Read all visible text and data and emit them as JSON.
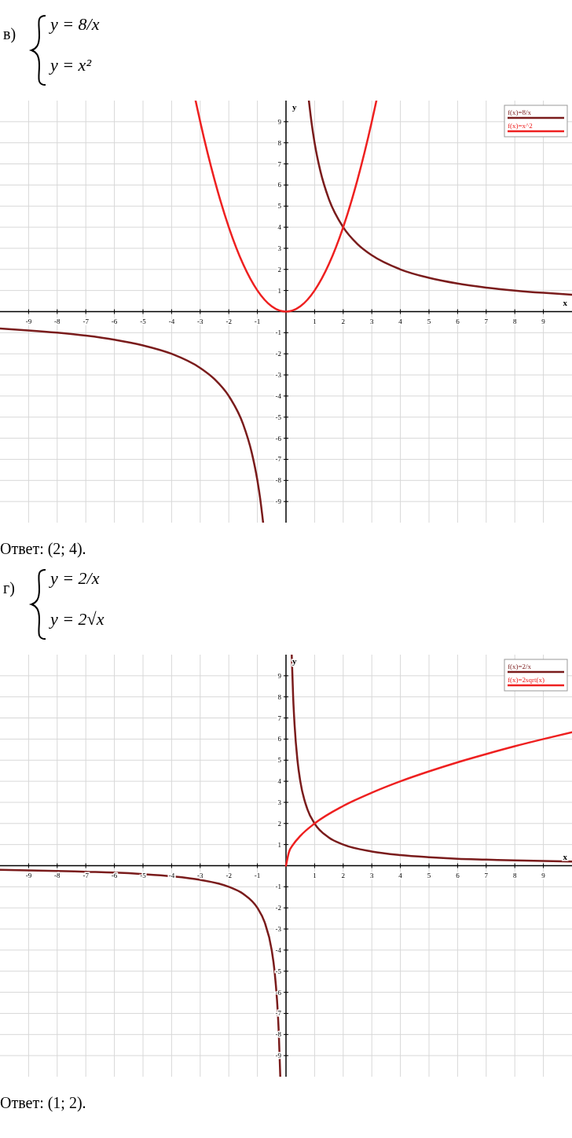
{
  "chart_data": [
    {
      "type": "line",
      "title": "в)",
      "xlabel": "x",
      "ylabel": "y",
      "xlim": [
        -10,
        10
      ],
      "ylim": [
        -10,
        10
      ],
      "xticks": [
        -9,
        -8,
        -7,
        -6,
        -5,
        -4,
        -3,
        -2,
        -1,
        1,
        2,
        3,
        4,
        5,
        6,
        7,
        8,
        9
      ],
      "yticks": [
        -9,
        -8,
        -7,
        -6,
        -5,
        -4,
        -3,
        -2,
        -1,
        1,
        2,
        3,
        4,
        5,
        6,
        7,
        8,
        9
      ],
      "grid": true,
      "legend": "top right",
      "marker": "none",
      "line_style": "solid",
      "annotations": [
        "y = 8/x",
        "y = x²",
        "Ответ: (2; 4)."
      ],
      "series": [
        {
          "name": "f(x)=8/x",
          "color": "#7a1c1c",
          "x": [
            -10,
            -9,
            -8,
            -7,
            -6,
            -5,
            -4,
            -3,
            -2.5,
            -2,
            -1.5,
            -1.2,
            -1,
            -0.9,
            -0.8,
            0,
            0.8,
            0.9,
            1,
            1.2,
            1.5,
            2,
            2.5,
            3,
            4,
            5,
            6,
            7,
            8,
            9,
            10
          ],
          "values": [
            -0.8,
            -0.89,
            -1,
            -1.14,
            -1.33,
            -1.6,
            -2,
            -2.67,
            -3.2,
            -4,
            -5.33,
            -6.67,
            -8,
            -8.89,
            -10,
            null,
            10,
            8.89,
            8,
            6.67,
            5.33,
            4,
            3.2,
            2.67,
            2,
            1.6,
            1.33,
            1.14,
            1,
            0.89,
            0.8
          ]
        },
        {
          "name": "f(x)=x^2",
          "color": "#ee2020",
          "x": [
            -3.16,
            -3,
            -2.5,
            -2,
            -1.5,
            -1,
            -0.5,
            0,
            0.5,
            1,
            1.5,
            2,
            2.5,
            3,
            3.16
          ],
          "values": [
            9.99,
            9,
            6.25,
            4,
            2.25,
            1,
            0.25,
            0,
            0.25,
            1,
            2.25,
            4,
            6.25,
            9,
            9.99
          ]
        }
      ]
    },
    {
      "type": "line",
      "title": "г)",
      "xlabel": "x",
      "ylabel": "y",
      "xlim": [
        -10,
        10
      ],
      "ylim": [
        -10,
        10
      ],
      "xticks": [
        -9,
        -8,
        -7,
        -6,
        -5,
        -4,
        -3,
        -2,
        -1,
        1,
        2,
        3,
        4,
        5,
        6,
        7,
        8,
        9
      ],
      "yticks": [
        -9,
        -8,
        -7,
        -6,
        -5,
        -4,
        -3,
        -2,
        -1,
        1,
        2,
        3,
        4,
        5,
        6,
        7,
        8,
        9
      ],
      "grid": true,
      "legend": "top right",
      "marker": "none",
      "line_style": "solid",
      "annotations": [
        "y = 2/x",
        "y = 2√x",
        "Ответ: (1; 2)."
      ],
      "series": [
        {
          "name": "f(x)=2/x",
          "color": "#7a1c1c",
          "x": [
            -10,
            -9,
            -8,
            -7,
            -6,
            -5,
            -4,
            -3,
            -2,
            -1.5,
            -1,
            -0.75,
            -0.5,
            -0.4,
            -0.3,
            -0.25,
            -0.2,
            0,
            0.2,
            0.25,
            0.3,
            0.4,
            0.5,
            0.75,
            1,
            1.5,
            2,
            3,
            4,
            5,
            6,
            7,
            8,
            9,
            10
          ],
          "values": [
            -0.2,
            -0.22,
            -0.25,
            -0.29,
            -0.33,
            -0.4,
            -0.5,
            -0.67,
            -1,
            -1.33,
            -2,
            -2.67,
            -4,
            -5,
            -6.67,
            -8,
            -10,
            null,
            10,
            8,
            6.67,
            5,
            4,
            2.67,
            2,
            1.33,
            1,
            0.67,
            0.5,
            0.4,
            0.33,
            0.29,
            0.25,
            0.22,
            0.2
          ]
        },
        {
          "name": "f(x)=2sqrt(x)",
          "color": "#ee2020",
          "x": [
            0,
            0.1,
            0.25,
            0.5,
            1,
            2,
            3,
            4,
            5,
            6,
            7,
            8,
            9,
            10
          ],
          "values": [
            0,
            0.63,
            1,
            1.41,
            2,
            2.83,
            3.46,
            4,
            4.47,
            4.9,
            5.29,
            5.66,
            6,
            6.32
          ]
        }
      ]
    }
  ]
}
